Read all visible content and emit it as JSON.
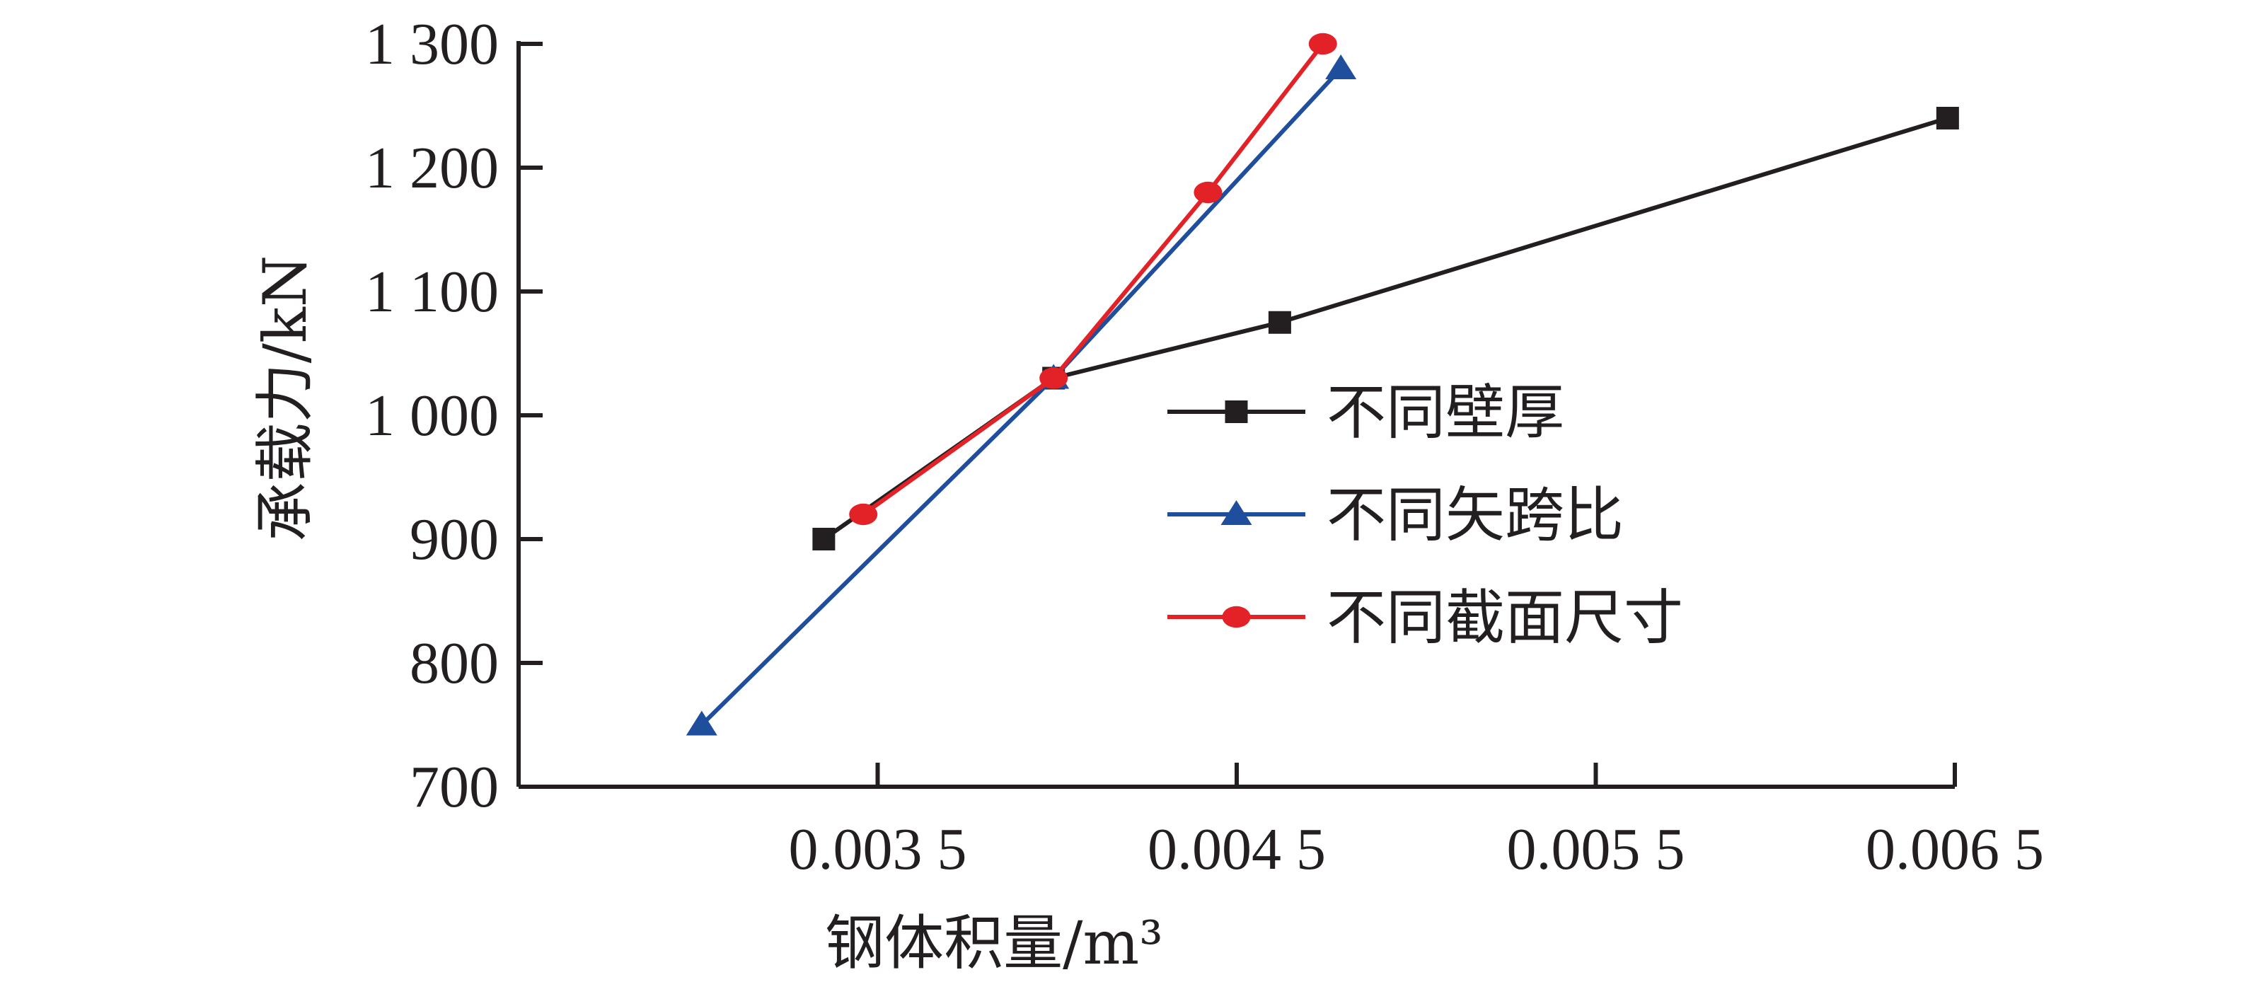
{
  "chart_data": {
    "type": "line",
    "xlabel": "钢体积量/m³",
    "ylabel": "承载力/kN",
    "xlim": [
      0.0025,
      0.0065
    ],
    "ylim": [
      700,
      1300
    ],
    "xticks": [
      0.0035,
      0.0045,
      0.0055,
      0.0065
    ],
    "xtick_labels": [
      "0.003 5",
      "0.004 5",
      "0.005 5",
      "0.006 5"
    ],
    "yticks": [
      700,
      800,
      900,
      1000,
      1100,
      1200,
      1300
    ],
    "ytick_labels": [
      "700",
      "800",
      "900",
      "1 000",
      "1 100",
      "1 200",
      "1 300"
    ],
    "grid": false,
    "legend_position": "right",
    "series": [
      {
        "name": "不同壁厚",
        "color": "#231f20",
        "marker": "square",
        "points": [
          [
            0.00335,
            900
          ],
          [
            0.00399,
            1030
          ],
          [
            0.00462,
            1075
          ],
          [
            0.00648,
            1240
          ]
        ]
      },
      {
        "name": "不同矢跨比",
        "color": "#1f4e9c",
        "marker": "triangle",
        "points": [
          [
            0.00301,
            750
          ],
          [
            0.00399,
            1030
          ],
          [
            0.00479,
            1280
          ]
        ]
      },
      {
        "name": "不同截面尺寸",
        "color": "#e32228",
        "marker": "circle",
        "points": [
          [
            0.00346,
            920
          ],
          [
            0.00399,
            1030
          ],
          [
            0.00442,
            1180
          ],
          [
            0.00474,
            1300
          ]
        ]
      }
    ]
  }
}
